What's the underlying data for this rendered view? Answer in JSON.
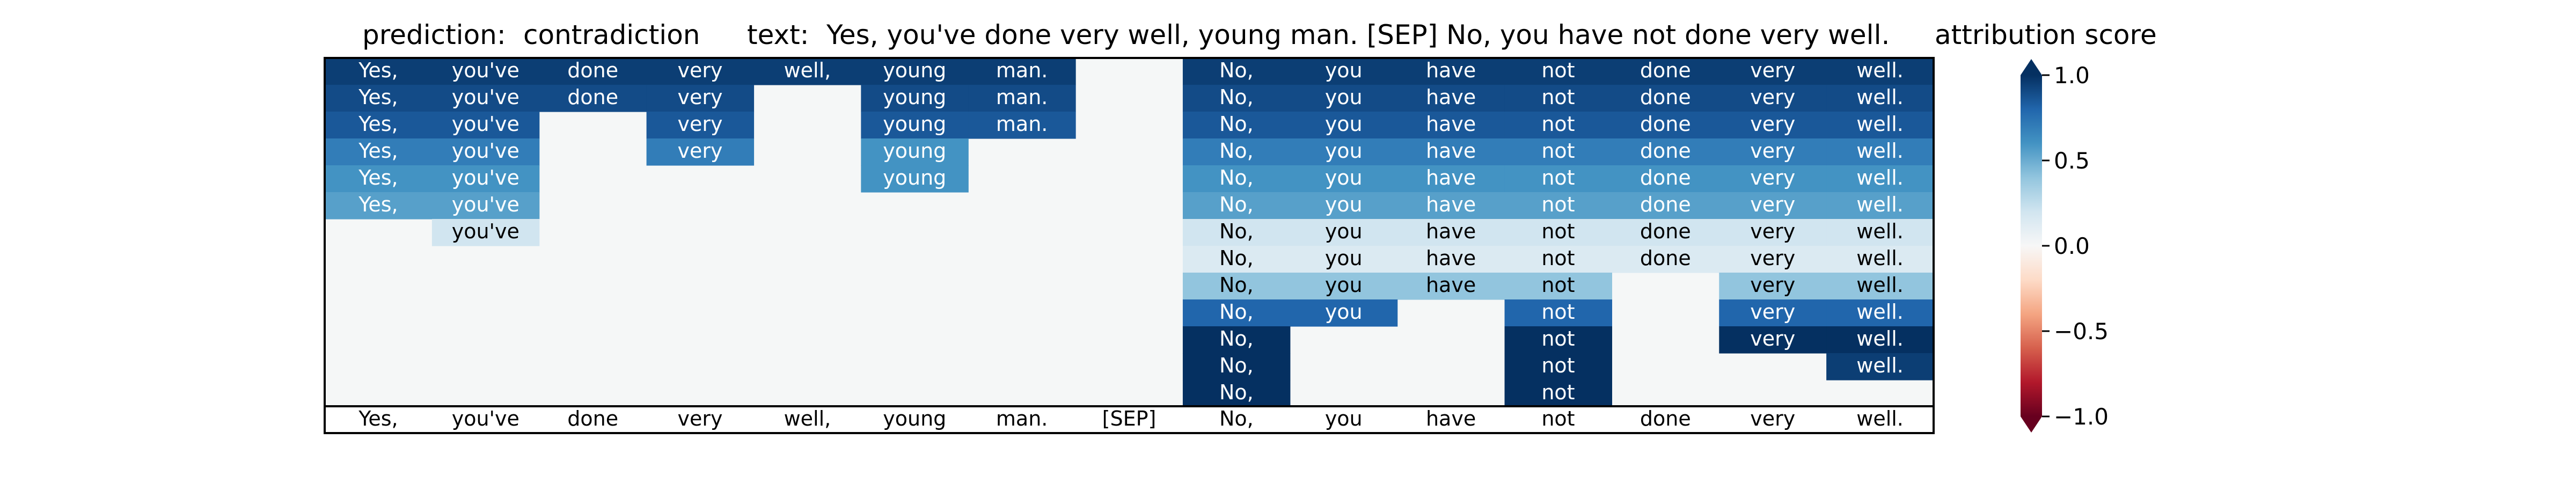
{
  "header": {
    "prediction_label": "prediction:",
    "prediction_value": "contradiction",
    "text_label": "text:",
    "text_value": "Yes, you've done very well, young man. [SEP] No, you have not done very well.",
    "colorbar_title": "attribution score"
  },
  "chart_data": {
    "type": "heatmap",
    "tokens": [
      "Yes,",
      "you've",
      "done",
      "very",
      "well,",
      "young",
      "man.",
      "[SEP]",
      "No,",
      "you",
      "have",
      "not",
      "done",
      "very",
      "well."
    ],
    "rows": [
      [
        0.95,
        0.95,
        0.95,
        0.95,
        0.95,
        0.95,
        0.95,
        null,
        0.95,
        0.95,
        0.95,
        0.95,
        0.95,
        0.95,
        0.95
      ],
      [
        0.9,
        0.9,
        0.9,
        0.9,
        null,
        0.9,
        0.9,
        null,
        0.9,
        0.9,
        0.9,
        0.9,
        0.9,
        0.9,
        0.9
      ],
      [
        0.85,
        0.85,
        null,
        0.85,
        null,
        0.85,
        0.85,
        null,
        0.85,
        0.85,
        0.85,
        0.85,
        0.85,
        0.85,
        0.85
      ],
      [
        0.7,
        0.7,
        null,
        0.7,
        null,
        0.6,
        null,
        null,
        0.7,
        0.7,
        0.7,
        0.7,
        0.7,
        0.7,
        0.7
      ],
      [
        0.6,
        0.6,
        null,
        null,
        null,
        0.6,
        null,
        null,
        0.6,
        0.6,
        0.6,
        0.6,
        0.6,
        0.6,
        0.6
      ],
      [
        0.55,
        0.55,
        null,
        null,
        null,
        null,
        null,
        null,
        0.55,
        0.55,
        0.55,
        0.55,
        0.55,
        0.55,
        0.55
      ],
      [
        null,
        0.2,
        null,
        null,
        null,
        null,
        null,
        null,
        0.2,
        0.2,
        0.2,
        0.2,
        0.2,
        0.2,
        0.2
      ],
      [
        null,
        null,
        null,
        null,
        null,
        null,
        null,
        null,
        0.15,
        0.15,
        0.15,
        0.15,
        0.15,
        0.15,
        0.15
      ],
      [
        null,
        null,
        null,
        null,
        null,
        null,
        null,
        null,
        0.4,
        0.4,
        0.4,
        0.4,
        null,
        0.4,
        0.4
      ],
      [
        null,
        null,
        null,
        null,
        null,
        null,
        null,
        null,
        0.8,
        0.8,
        null,
        0.8,
        null,
        0.8,
        0.8
      ],
      [
        null,
        null,
        null,
        null,
        null,
        null,
        null,
        null,
        1.0,
        null,
        null,
        1.0,
        null,
        1.0,
        1.0
      ],
      [
        null,
        null,
        null,
        null,
        null,
        null,
        null,
        null,
        1.0,
        null,
        null,
        1.0,
        null,
        null,
        0.95
      ],
      [
        null,
        null,
        null,
        null,
        null,
        null,
        null,
        null,
        1.0,
        null,
        null,
        1.0,
        null,
        null,
        null
      ]
    ],
    "colorbar": {
      "range": [
        -1.0,
        1.0
      ],
      "ticks": [
        1.0,
        0.5,
        0.0,
        -0.5,
        -1.0
      ],
      "tick_labels": [
        "1.0",
        "0.5",
        "0.0",
        "−0.5",
        "−1.0"
      ],
      "colormap": "RdBu",
      "extend": "both"
    },
    "background_color": "#f5f7f7"
  }
}
